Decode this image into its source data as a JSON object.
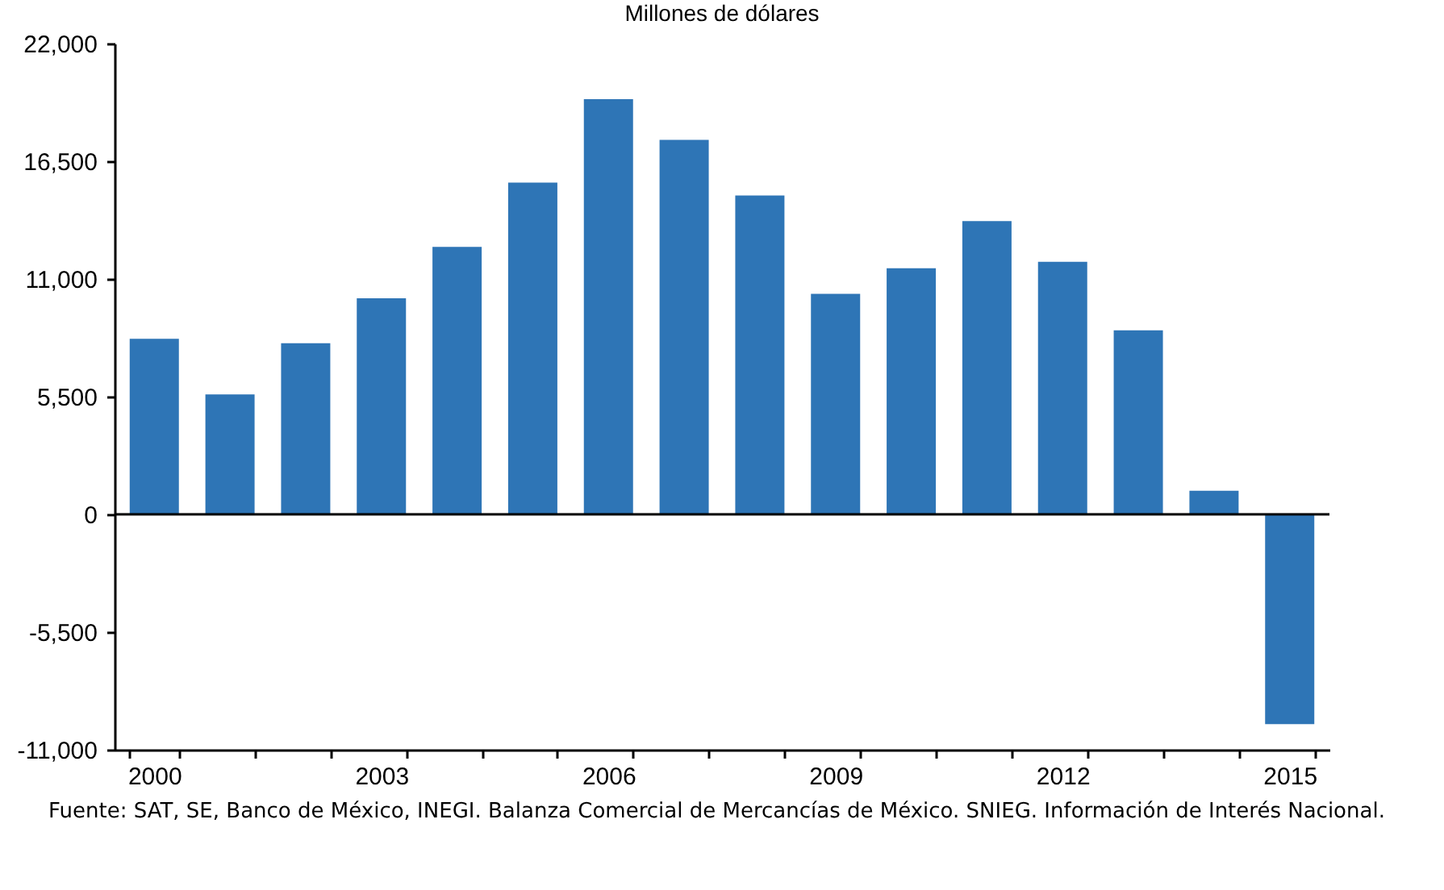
{
  "chart_data": {
    "type": "bar",
    "title": "Millones de dólares",
    "categories": [
      "2000",
      null,
      null,
      "2003",
      null,
      null,
      "2006",
      null,
      null,
      "2009",
      null,
      null,
      "2012",
      null,
      null,
      "2015"
    ],
    "values": [
      8200,
      5600,
      8000,
      10100,
      12500,
      15500,
      19400,
      17500,
      14900,
      10300,
      11500,
      13700,
      11800,
      8600,
      1100,
      -9800
    ],
    "color": "#2e75b6",
    "ylim": [
      -11000,
      22000
    ],
    "yticks": [
      {
        "value": -11000,
        "label": "-11,000"
      },
      {
        "value": -5500,
        "label": "-5,500"
      },
      0,
      {
        "value": 5500,
        "label": "5,500"
      },
      {
        "value": 11000,
        "label": "11,000"
      },
      {
        "value": 16500,
        "label": "16,500"
      },
      {
        "value": 22000,
        "label": "22,000"
      }
    ],
    "ref_lines": [
      {
        "axis": "y",
        "value": 0
      }
    ],
    "grid": false,
    "annotations": [
      "Fuente:   SAT, SE, Banco de México, INEGI. Balanza Comercial de Mercancías de México. SNIEG. Información de Interés Nacional."
    ]
  }
}
